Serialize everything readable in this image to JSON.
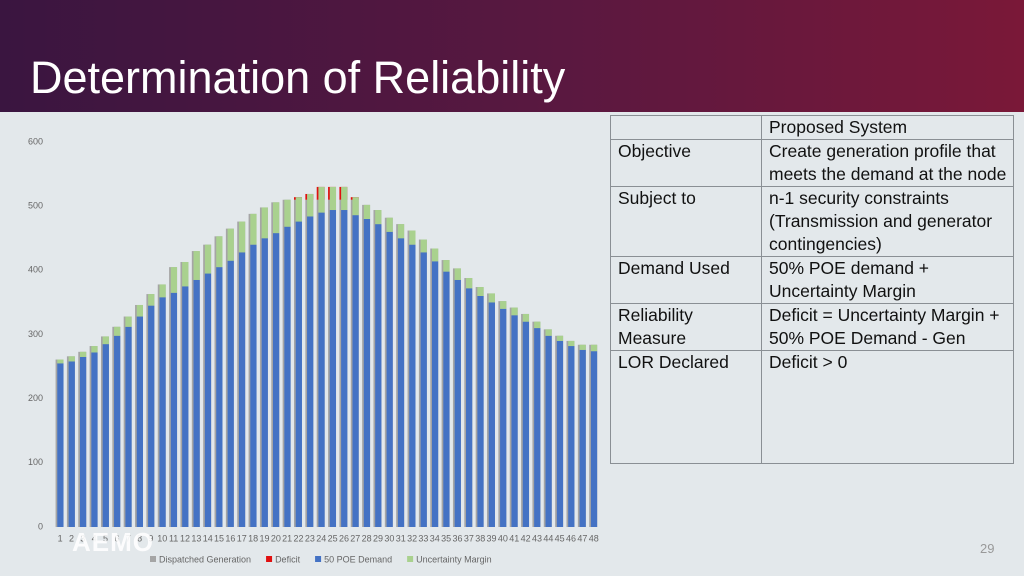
{
  "header": {
    "title": "Determination of Reliability"
  },
  "chart_data": {
    "type": "bar",
    "categories": [
      "1",
      "2",
      "3",
      "4",
      "5",
      "6",
      "7",
      "8",
      "9",
      "10",
      "11",
      "12",
      "13",
      "14",
      "15",
      "16",
      "17",
      "18",
      "19",
      "20",
      "21",
      "22",
      "23",
      "24",
      "25",
      "26",
      "27",
      "28",
      "29",
      "30",
      "31",
      "32",
      "33",
      "34",
      "35",
      "36",
      "37",
      "38",
      "39",
      "40",
      "41",
      "42",
      "43",
      "44",
      "45",
      "46",
      "47",
      "48"
    ],
    "series": [
      {
        "name": "Dispatched Generation",
        "color": "#a5a5a5",
        "values": [
          261,
          266,
          273,
          282,
          297,
          312,
          328,
          346,
          363,
          378,
          405,
          413,
          430,
          440,
          453,
          465,
          476,
          488,
          498,
          506,
          510,
          510,
          510,
          510,
          510,
          510,
          510,
          502,
          494,
          482,
          472,
          462,
          448,
          434,
          416,
          403,
          388,
          374,
          364,
          352,
          342,
          332,
          320,
          308,
          298,
          290,
          284,
          284
        ]
      },
      {
        "name": "Deficit",
        "color": "#e01010",
        "values": [
          0,
          0,
          0,
          0,
          0,
          0,
          0,
          0,
          0,
          0,
          0,
          0,
          0,
          0,
          0,
          0,
          0,
          0,
          0,
          0,
          0,
          4,
          9,
          20,
          20,
          20,
          4,
          0,
          0,
          0,
          0,
          0,
          0,
          0,
          0,
          0,
          0,
          0,
          0,
          0,
          0,
          0,
          0,
          0,
          0,
          0,
          0,
          0
        ]
      },
      {
        "name": "50 POE Demand",
        "color": "#4472c4",
        "values": [
          255,
          258,
          265,
          272,
          285,
          298,
          312,
          328,
          345,
          358,
          365,
          375,
          385,
          395,
          405,
          415,
          428,
          440,
          450,
          458,
          468,
          476,
          484,
          490,
          494,
          494,
          486,
          480,
          472,
          460,
          450,
          440,
          428,
          414,
          398,
          385,
          372,
          360,
          350,
          340,
          330,
          320,
          310,
          298,
          290,
          282,
          276,
          274
        ]
      },
      {
        "name": "Uncertainty Margin",
        "color": "#a9d18e",
        "values": [
          6,
          8,
          8,
          10,
          12,
          14,
          16,
          18,
          18,
          20,
          40,
          38,
          45,
          45,
          48,
          50,
          48,
          48,
          48,
          48,
          42,
          38,
          35,
          40,
          36,
          36,
          28,
          22,
          22,
          22,
          22,
          22,
          20,
          20,
          18,
          18,
          16,
          14,
          14,
          12,
          12,
          12,
          10,
          10,
          8,
          8,
          8,
          10
        ]
      }
    ],
    "ylim": [
      0,
      600
    ],
    "yticks": [
      0,
      100,
      200,
      300,
      400,
      500,
      600
    ],
    "grid": false,
    "legend": "bottom"
  },
  "table": {
    "header": "Proposed System",
    "rows": [
      [
        "Objective",
        "Create generation profile that meets the demand at the node"
      ],
      [
        "Subject to",
        "n-1 security constraints (Transmission and generator contingencies)"
      ],
      [
        "Demand Used",
        "50% POE demand + Uncertainty Margin"
      ],
      [
        "Reliability Measure",
        "Deficit = Uncertainty Margin + 50% POE Demand  - Gen"
      ],
      [
        "LOR Declared",
        "Deficit > 0"
      ]
    ]
  },
  "logo": "AEMO",
  "page_number": "29"
}
